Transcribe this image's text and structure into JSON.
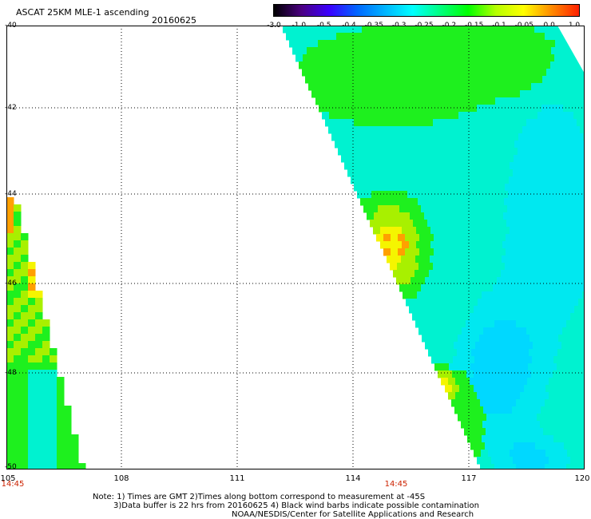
{
  "header": {
    "title": "ASCAT 25KM MLE-1 ascending",
    "date": "20160625"
  },
  "colorbar": {
    "tick_labels": [
      "-3.0",
      "-1.0",
      "-0.5",
      "-0.4",
      "-0.35",
      "-0.3",
      "-0.25",
      "-0.2",
      "-0.15",
      "-0.1",
      "-0.05",
      "0.0",
      "1.0"
    ],
    "colors": [
      "#000000",
      "#4b0082",
      "#3a00ff",
      "#0066ff",
      "#00b4ff",
      "#00ffff",
      "#00ff7f",
      "#00ff00",
      "#b6ff00",
      "#ffff00",
      "#ff8c00",
      "#ff2000"
    ]
  },
  "map": {
    "lat_labels": [
      "-40",
      "-42",
      "-44",
      "-46",
      "-48",
      "-50"
    ],
    "lon_labels": [
      "105",
      "108",
      "111",
      "114",
      "117",
      "120"
    ],
    "time_labels": [
      "14:45",
      "14:45"
    ],
    "palette": {
      "green": "#1ef01e",
      "aqua": "#00f2d0",
      "cyan": "#00e8f0",
      "lightblue": "#00d8ff",
      "yellow": "#f5f500",
      "yellowgreen": "#a8f000",
      "orange": "#ffa000"
    }
  },
  "notes": {
    "line1": "Note: 1) Times are GMT 2)Times along bottom correspond to measurement at -45S",
    "line2": "3)Data buffer is 22 hrs from 20160625 4) Black wind barbs indicate possible contamination",
    "line3": "NOAA/NESDIS/Center for Satellite Applications and Research"
  }
}
